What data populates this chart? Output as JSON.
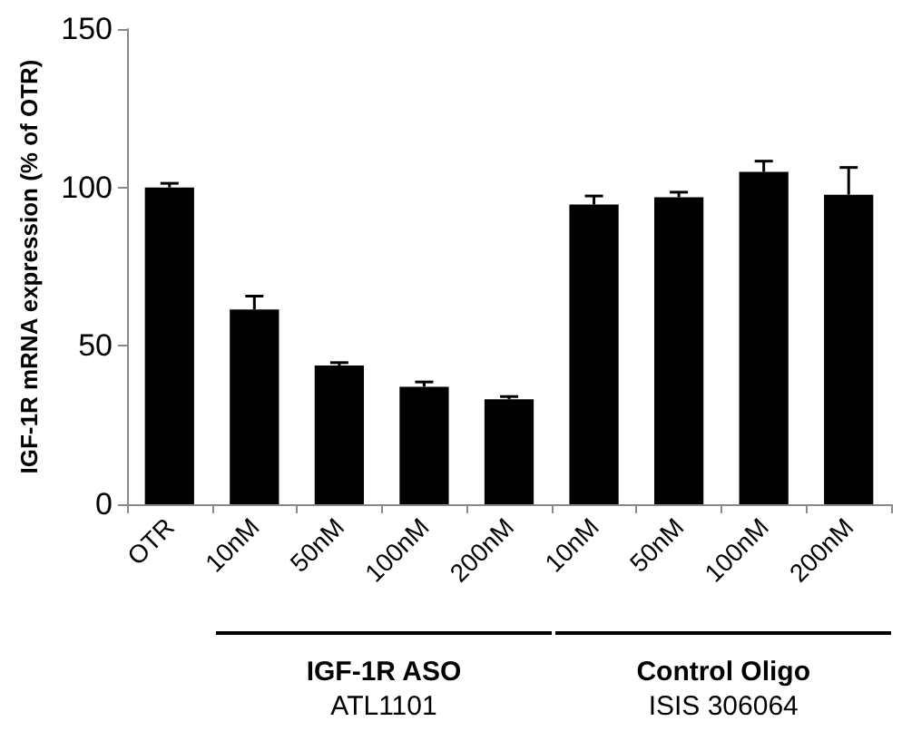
{
  "chart_data": {
    "type": "bar",
    "ylabel": "IGF-1R mRNA expression (% of OTR)",
    "categories": [
      "OTR",
      "10nM",
      "50nM",
      "100nM",
      "200nM",
      "10nM",
      "50nM",
      "100nM",
      "200nM"
    ],
    "values": [
      100,
      61.5,
      43.8,
      37.1,
      33.1,
      94.6,
      96.9,
      104.9,
      97.7
    ],
    "errors": [
      [
        100,
        101.3
      ],
      [
        61.5,
        65.7
      ],
      [
        43.8,
        44.7
      ],
      [
        37.1,
        38.6
      ],
      [
        33.1,
        34
      ],
      [
        94.6,
        97.3
      ],
      [
        96.9,
        98.5
      ],
      [
        104.9,
        108.3
      ],
      [
        97.7,
        106.3
      ]
    ],
    "color": "#000000",
    "ylim": [
      0,
      150
    ],
    "yticks": [
      0,
      50,
      100,
      150
    ],
    "annotations": [
      "IGF-1R ASO",
      "ATL1101",
      "Control Oligo",
      "ISIS 306064"
    ]
  }
}
